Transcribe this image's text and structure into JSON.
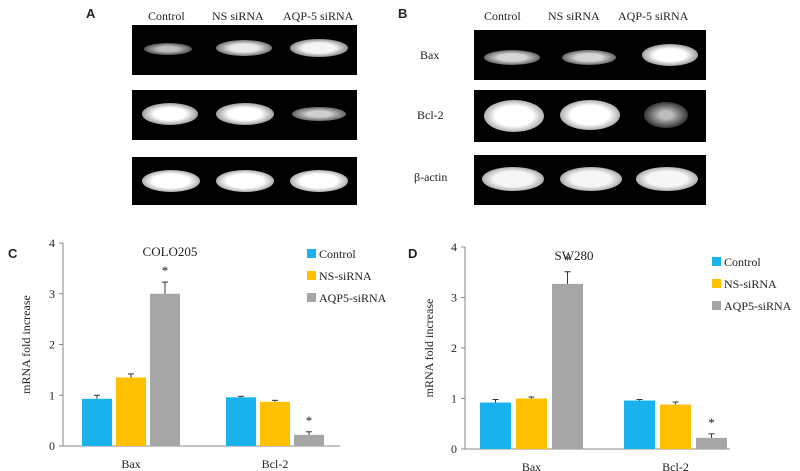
{
  "panel_a": {
    "letter": "A",
    "lanes": [
      "Control",
      "NS siRNA",
      "AQP-5 siRNA"
    ]
  },
  "panel_b": {
    "letter": "B",
    "lanes": [
      "Control",
      "NS siRNA",
      "AQP-5 siRNA"
    ],
    "rows": [
      "Bax",
      "Bcl-2",
      "β-actin"
    ]
  },
  "panel_c": {
    "letter": "C",
    "title": "COLO205",
    "ylabel": "mRNA fold increase",
    "yticks": [
      "0",
      "1",
      "2",
      "3",
      "4"
    ],
    "categories": [
      "Bax",
      "Bcl-2"
    ],
    "legend": [
      "Control",
      "NS-siRNA",
      "AQP5-siRNA"
    ],
    "sig_marks": [
      "*",
      "*"
    ]
  },
  "panel_d": {
    "letter": "D",
    "title": "SW280",
    "ylabel": "mRNA fold increase",
    "yticks": [
      "0",
      "1",
      "2",
      "3",
      "4"
    ],
    "categories": [
      "Bax",
      "Bcl-2"
    ],
    "legend": [
      "Control",
      "NS-siRNA",
      "AQP5-siRNA"
    ],
    "sig_marks": [
      "*",
      "*"
    ]
  },
  "colors": {
    "control": "#1ab2ec",
    "ns": "#ffc000",
    "aqp5": "#a6a6a6"
  },
  "chart_data": [
    {
      "type": "bar",
      "title": "COLO205",
      "xlabel": "",
      "ylabel": "mRNA fold increase",
      "ylim": [
        0,
        4
      ],
      "categories": [
        "Bax",
        "Bcl-2"
      ],
      "series": [
        {
          "name": "Control",
          "values": [
            0.93,
            0.96
          ],
          "errors": [
            0.07,
            0.02
          ]
        },
        {
          "name": "NS-siRNA",
          "values": [
            1.35,
            0.87
          ],
          "errors": [
            0.07,
            0.03
          ]
        },
        {
          "name": "AQP5-siRNA",
          "values": [
            3.0,
            0.22
          ],
          "errors": [
            0.23,
            0.06
          ]
        }
      ],
      "legend_position": "top-right",
      "grid": false
    },
    {
      "type": "bar",
      "title": "SW280",
      "xlabel": "",
      "ylabel": "mRNA fold increase",
      "ylim": [
        0,
        4
      ],
      "categories": [
        "Bax",
        "Bcl-2"
      ],
      "series": [
        {
          "name": "Control",
          "values": [
            0.92,
            0.96
          ],
          "errors": [
            0.06,
            0.02
          ]
        },
        {
          "name": "NS-siRNA",
          "values": [
            1.0,
            0.88
          ],
          "errors": [
            0.03,
            0.05
          ]
        },
        {
          "name": "AQP5-siRNA",
          "values": [
            3.27,
            0.22
          ],
          "errors": [
            0.24,
            0.08
          ]
        }
      ],
      "legend_position": "top-right",
      "grid": false
    }
  ]
}
